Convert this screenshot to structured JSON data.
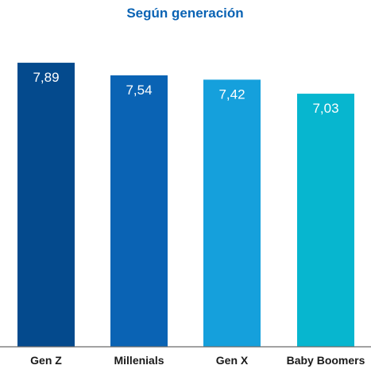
{
  "chart_data": {
    "type": "bar",
    "title": "Según generación",
    "categories": [
      "Gen Z",
      "Millenials",
      "Gen X",
      "Baby Boomers"
    ],
    "values": [
      7.89,
      7.54,
      7.42,
      7.03
    ],
    "value_labels": [
      "7,89",
      "7,54",
      "7,42",
      "7,03"
    ],
    "colors": [
      "#044a8d",
      "#0a63b4",
      "#15a0dc",
      "#07b6cf"
    ],
    "ylim": [
      0,
      8.2
    ],
    "grid": false,
    "legend": "none"
  }
}
